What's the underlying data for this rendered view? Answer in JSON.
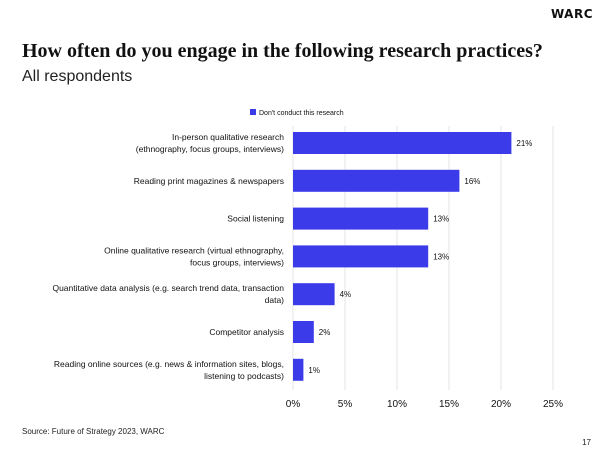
{
  "brand": "WARC",
  "page_number": "17",
  "source": "Source: Future of Strategy 2023, WARC",
  "colors": {
    "bar": "#3b3bea",
    "grid": "#e6e6e6",
    "text": "#111111"
  },
  "chart_data": {
    "type": "bar",
    "orientation": "horizontal",
    "title": "How often do you engage in the following research practices?",
    "subtitle": "All respondents",
    "legend": {
      "entries": [
        "Don't conduct this research"
      ],
      "placement": "top"
    },
    "categories": [
      [
        "In-person qualitative research",
        "(ethnography, focus groups, interviews)"
      ],
      [
        "Reading print magazines & newspapers"
      ],
      [
        "Social listening"
      ],
      [
        "Online qualitative research (virtual ethnography,",
        "focus groups, interviews)"
      ],
      [
        "Quantitative data analysis (e.g. search trend data, transaction",
        "data)"
      ],
      [
        "Competitor analysis"
      ],
      [
        "Reading online sources (e.g. news & information sites, blogs,",
        "listening to podcasts)"
      ]
    ],
    "series": [
      {
        "name": "Don't conduct this research",
        "values": [
          21,
          16,
          13,
          13,
          4,
          2,
          1
        ]
      }
    ],
    "value_labels": [
      "21%",
      "16%",
      "13%",
      "13%",
      "4%",
      "2%",
      "1%"
    ],
    "xlim": [
      0,
      25
    ],
    "xticks": [
      0,
      5,
      10,
      15,
      20,
      25
    ],
    "xtick_labels": [
      "0%",
      "5%",
      "10%",
      "15%",
      "20%",
      "25%"
    ],
    "grid": true
  }
}
